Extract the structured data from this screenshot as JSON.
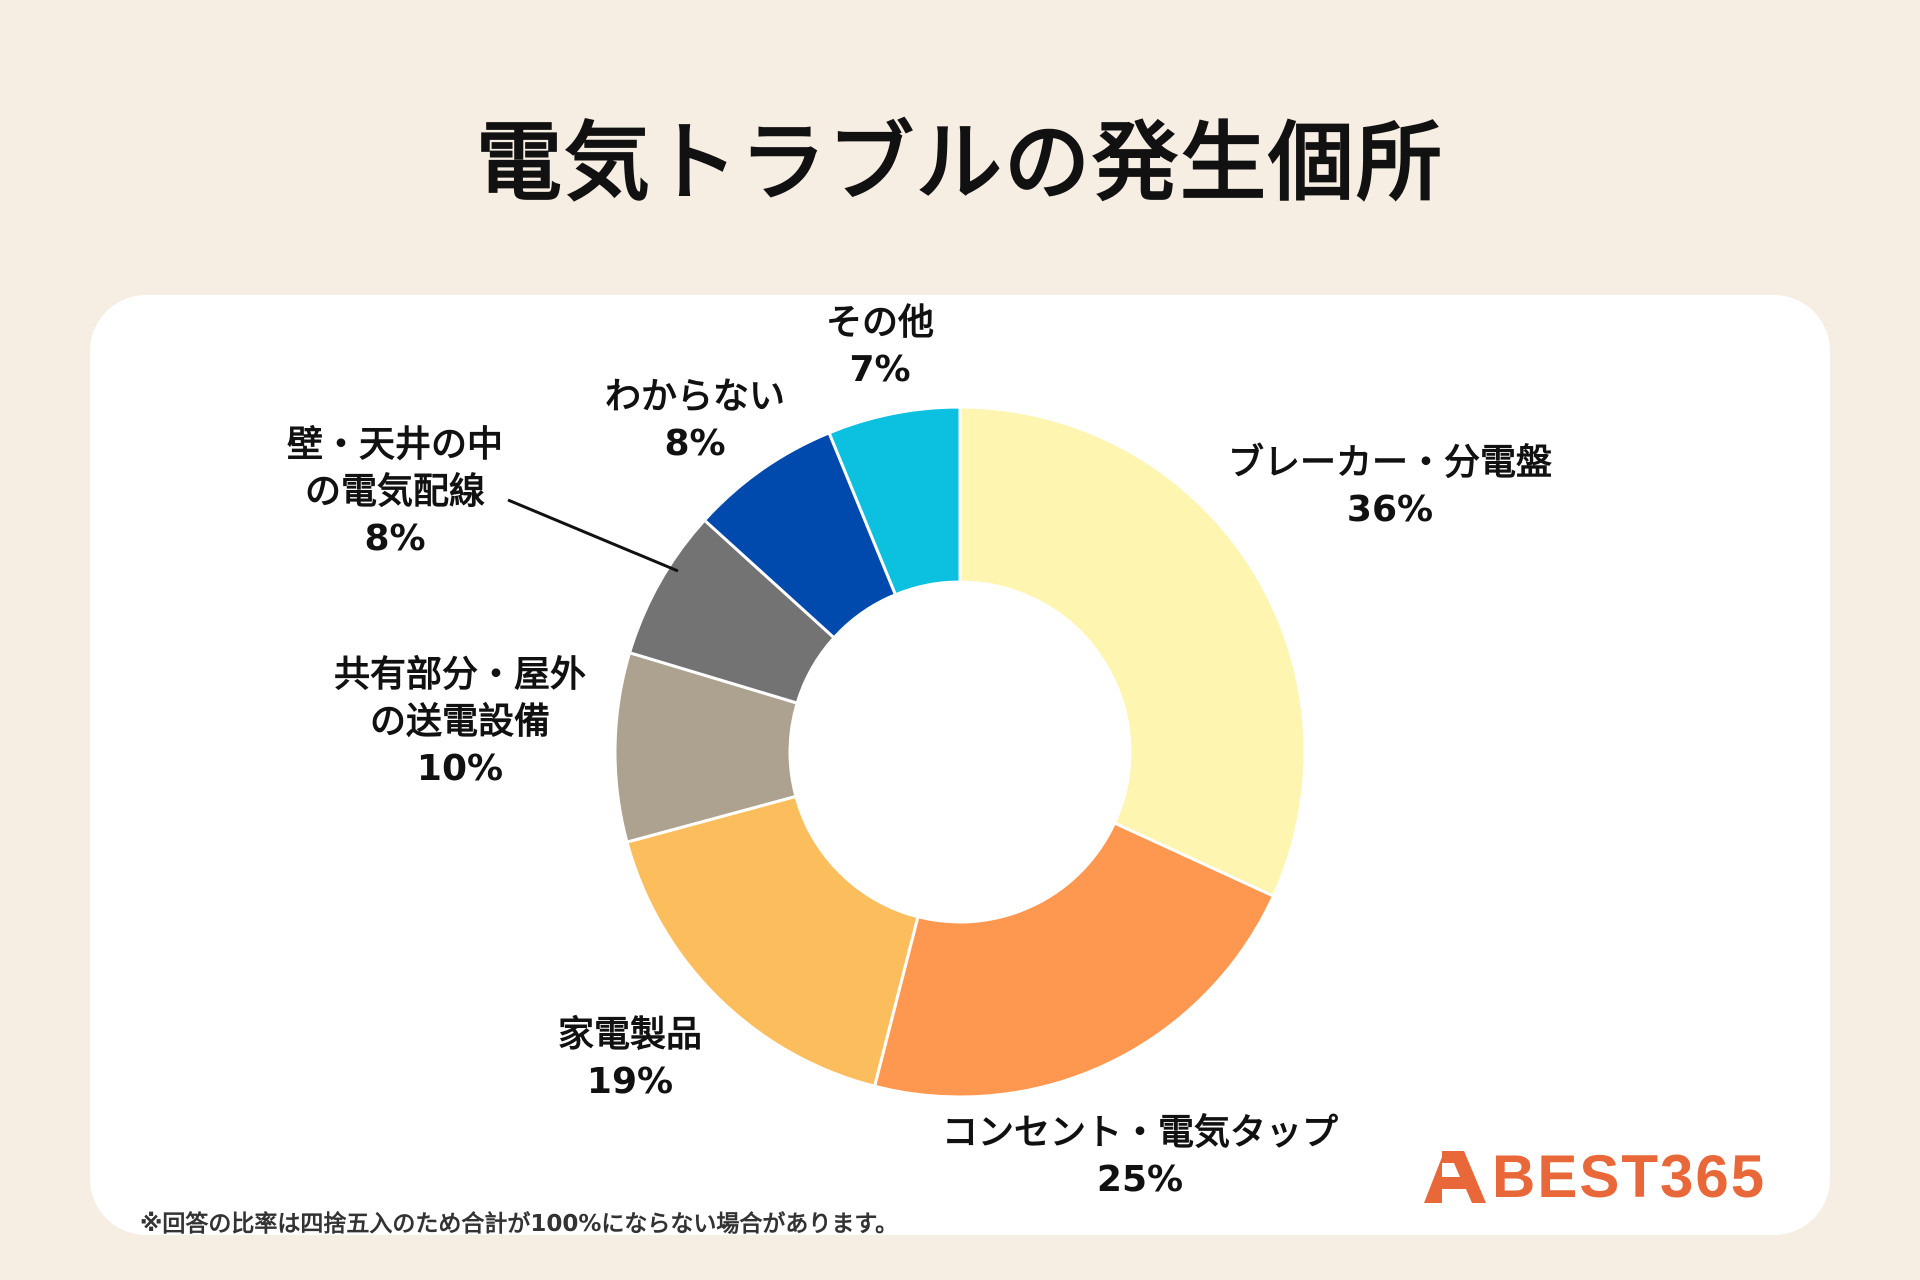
{
  "title": "電気トラブルの発生個所",
  "footnote": "※回答の比率は四捨五入のため合計が100%にならない場合があります。",
  "logo": {
    "text": "BEST365",
    "color": "#e8683a"
  },
  "chart_data": {
    "type": "pie",
    "donut": true,
    "title": "電気トラブルの発生個所",
    "slices": [
      {
        "label": [
          "ブレーカー・分電盤"
        ],
        "value": 36,
        "value_label": "36%",
        "color": "#fdf5b0"
      },
      {
        "label": [
          "コンセント・電気タップ"
        ],
        "value": 25,
        "value_label": "25%",
        "color": "#fe9750"
      },
      {
        "label": [
          "家電製品"
        ],
        "value": 19,
        "value_label": "19%",
        "color": "#fcbd5d"
      },
      {
        "label": [
          "共有部分・屋外",
          "の送電設備"
        ],
        "value": 10,
        "value_label": "10%",
        "color": "#ada28f"
      },
      {
        "label": [
          "壁・天井の中",
          "の電気配線"
        ],
        "value": 8,
        "value_label": "8%",
        "color": "#737373"
      },
      {
        "label": [
          "わからない"
        ],
        "value": 8,
        "value_label": "8%",
        "color": "#004aad"
      },
      {
        "label": [
          "その他"
        ],
        "value": 7,
        "value_label": "7%",
        "color": "#0cc0df"
      }
    ]
  }
}
